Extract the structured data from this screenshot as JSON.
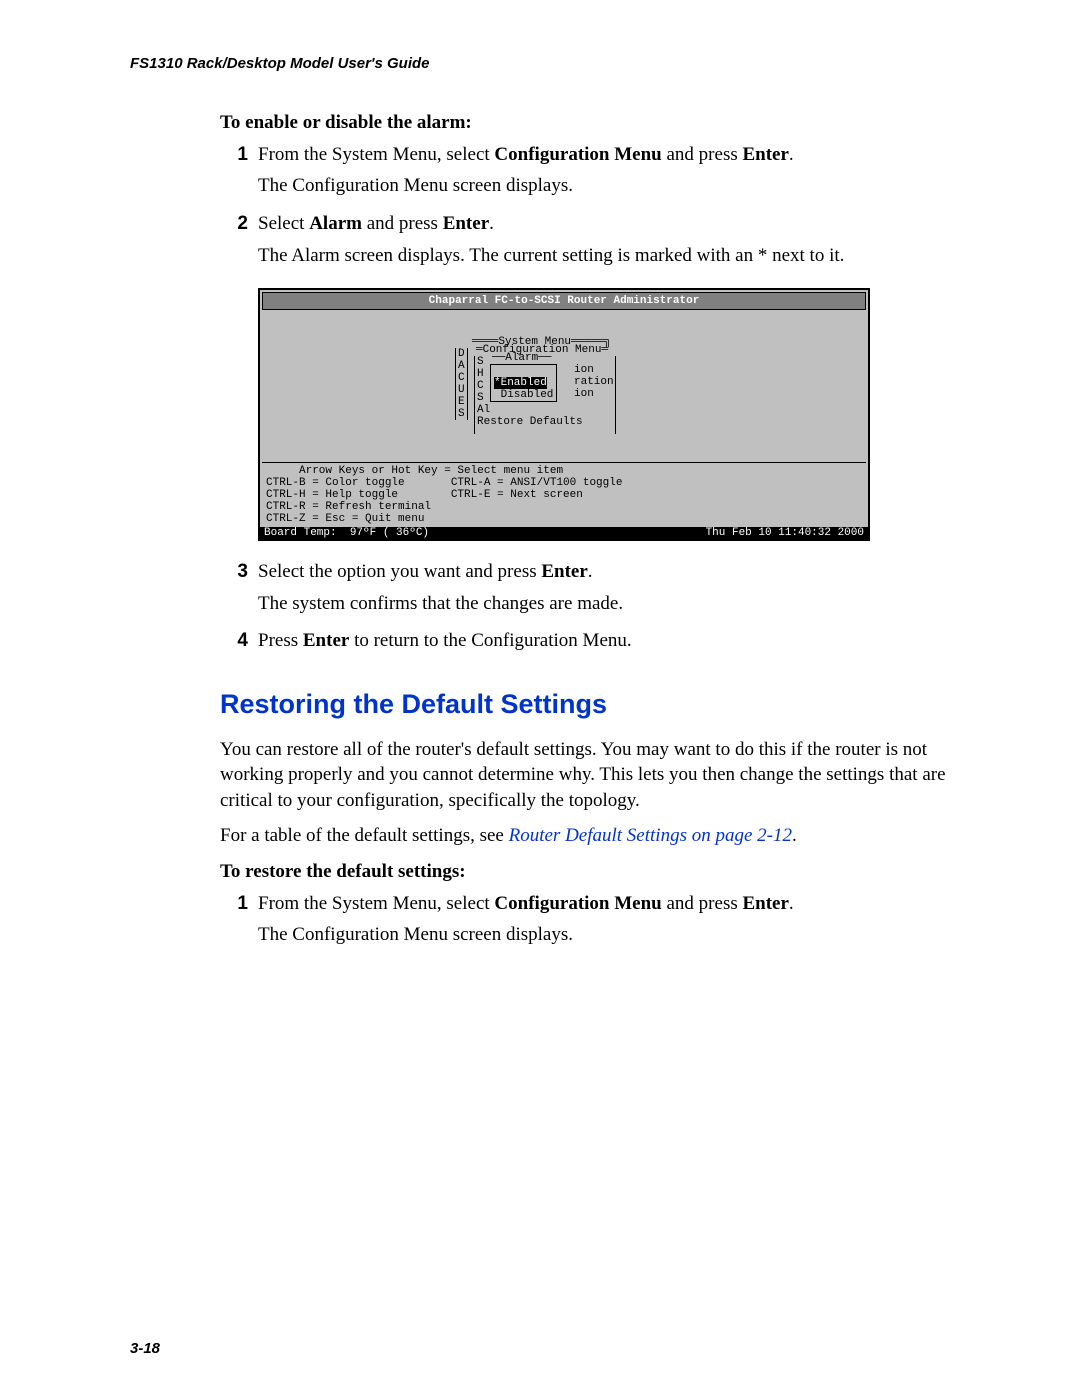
{
  "header": "FS1310 Rack/Desktop Model User's Guide",
  "alarm": {
    "intro": "To enable or disable the alarm:",
    "steps": [
      {
        "num": "1",
        "lines": [
          "From the System Menu, select <b>Configuration Menu</b> and press <b>Enter</b>.",
          "The Configuration Menu screen displays."
        ]
      },
      {
        "num": "2",
        "lines": [
          "Select <b>Alarm</b> and press <b>Enter</b>.",
          "The Alarm screen displays. The current setting is marked with an * next to it."
        ]
      }
    ],
    "steps_after": [
      {
        "num": "3",
        "lines": [
          "Select the option you want and press <b>Enter</b>.",
          "The system confirms that the changes are made."
        ]
      },
      {
        "num": "4",
        "lines": [
          "Press <b>Enter</b> to return to the Configuration Menu."
        ]
      }
    ]
  },
  "terminal": {
    "title": "Chaparral FC-to-SCSI Router Administrator",
    "system_menu": "System Menu",
    "config_menu": "Configuration Menu",
    "alarm_label": "Alarm",
    "left_col": "D\nA\nC\nU\nE\nS",
    "left_col2": "S\nH\nC\nS\nAl\nRestore Defaults",
    "opt_enabled": "*Enabled",
    "opt_disabled": " Disabled",
    "right_frag": "ion\nration\nion",
    "help": "     Arrow Keys or Hot Key = Select menu item\nCTRL-B = Color toggle       CTRL-A = ANSI/VT100 toggle\nCTRL-H = Help toggle        CTRL-E = Next screen\nCTRL-R = Refresh terminal\nCTRL-Z = Esc = Quit menu",
    "status_left": "Board Temp:  97ºF ( 36ºC)",
    "status_right": "Thu Feb 10 11:40:32 2000"
  },
  "restore": {
    "heading": "Restoring the Default Settings",
    "p1": "You can restore all of the router's default settings. You may want to do this if the router is not working properly and you cannot determine why. This lets you then change the settings that are critical to your configuration, specifically the topology.",
    "p2_pre": "For a table of the default settings, see ",
    "p2_link": "Router Default Settings on page 2-12",
    "p2_post": ".",
    "sub": "To restore the default settings:",
    "steps": [
      {
        "num": "1",
        "lines": [
          "From the System Menu, select <b>Configuration Menu</b> and press <b>Enter</b>.",
          "The Configuration Menu screen displays."
        ]
      }
    ]
  },
  "page_num": "3-18"
}
